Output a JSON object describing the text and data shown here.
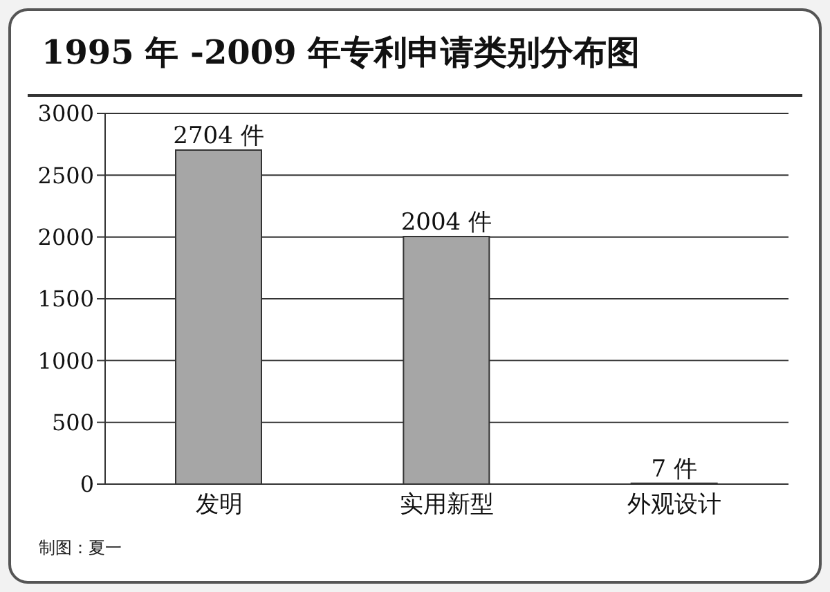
{
  "chart_data": {
    "type": "bar",
    "title": "1995 年 -2009 年专利申请类别分布图",
    "categories": [
      "发明",
      "实用新型",
      "外观设计"
    ],
    "values": [
      2704,
      2004,
      7
    ],
    "value_labels": [
      "2704 件",
      "2004 件",
      "7 件"
    ],
    "color": "#a6a6a6",
    "ylim": [
      0,
      3000
    ],
    "yticks": [
      0,
      500,
      1000,
      1500,
      2000,
      2500,
      3000
    ],
    "grid": "y",
    "annotations": [
      "制图：夏一"
    ]
  }
}
